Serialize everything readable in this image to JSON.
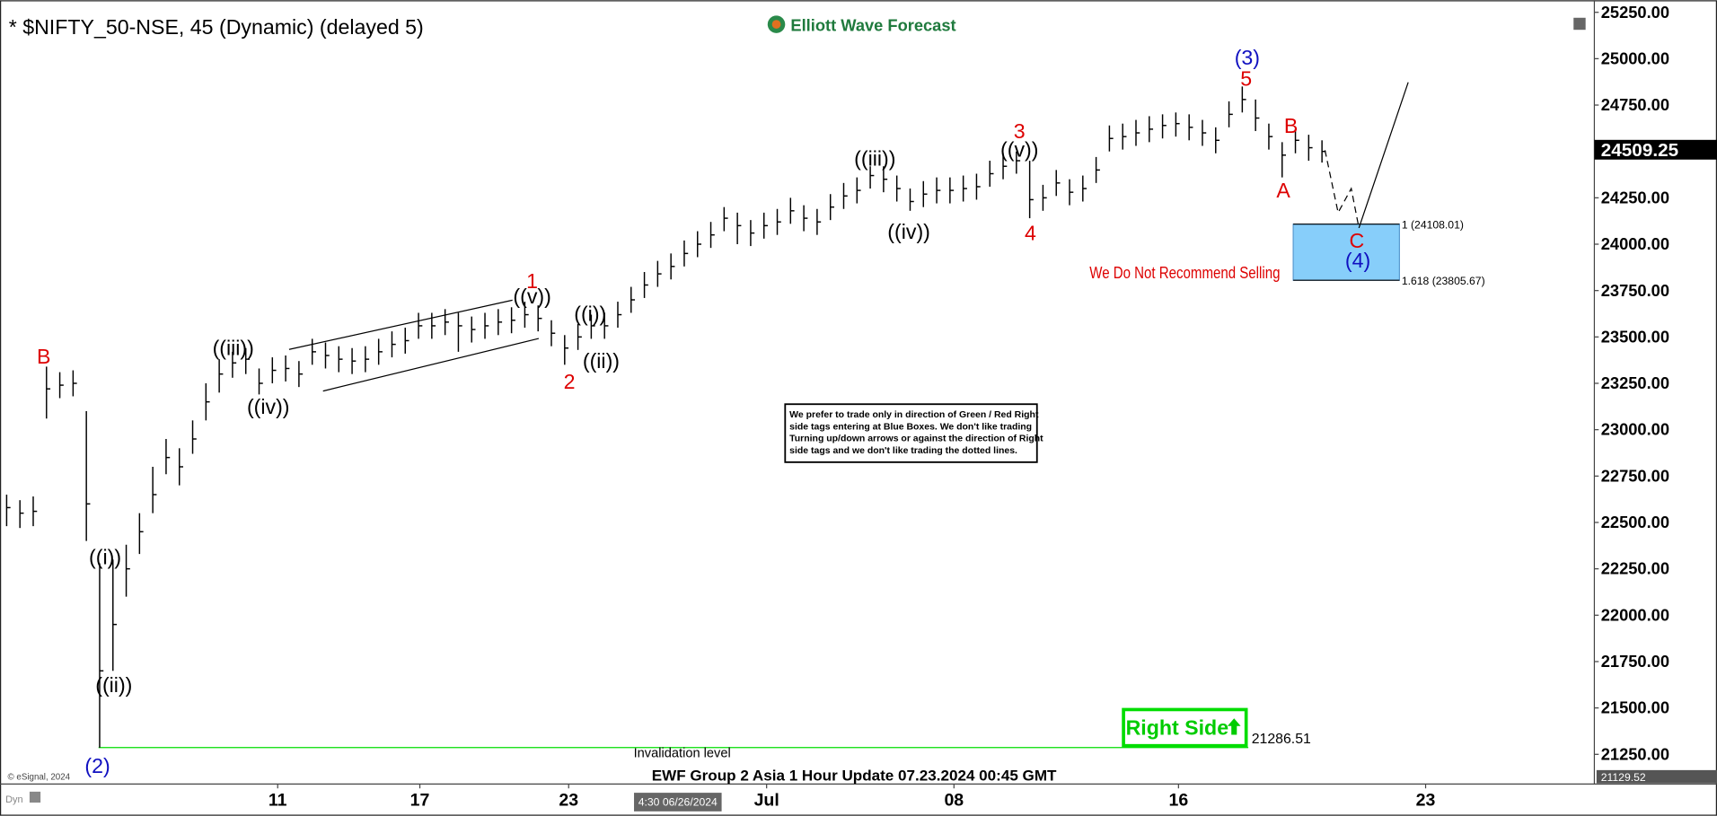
{
  "chart_data": {
    "type": "ohlc",
    "title": "* $NIFTY_50-NSE, 45 (Dynamic) (delayed 5)",
    "logo": "Elliott Wave Forecast",
    "footer": "EWF Group 2 Asia 1 Hour Update 07.23.2024 00:45 GMT",
    "copyright": "© eSignal, 2024",
    "cursor_time": "4:30 06/26/2024",
    "interval_label": "Dyn",
    "color": "#000000",
    "xlim": [
      0,
      120
    ],
    "ylim": [
      21090,
      25315
    ],
    "xticks": [
      {
        "value": 20.9,
        "label": "11"
      },
      {
        "value": 31.6,
        "label": "17"
      },
      {
        "value": 42.8,
        "label": "23"
      },
      {
        "value": 57.7,
        "label": "Jul"
      },
      {
        "value": 71.8,
        "label": "08"
      },
      {
        "value": 88.7,
        "label": "16"
      },
      {
        "value": 107.3,
        "label": "23"
      }
    ],
    "yticks": [
      {
        "value": 21250,
        "label": "21250.00"
      },
      {
        "value": 21500,
        "label": "21500.00"
      },
      {
        "value": 21750,
        "label": "21750.00"
      },
      {
        "value": 22000,
        "label": "22000.00"
      },
      {
        "value": 22250,
        "label": "22250.00"
      },
      {
        "value": 22500,
        "label": "22500.00"
      },
      {
        "value": 22750,
        "label": "22750.00"
      },
      {
        "value": 23000,
        "label": "23000.00"
      },
      {
        "value": 23250,
        "label": "23250.00"
      },
      {
        "value": 23500,
        "label": "23500.00"
      },
      {
        "value": 23750,
        "label": "23750.00"
      },
      {
        "value": 24000,
        "label": "24000.00"
      },
      {
        "value": 24250,
        "label": "24250.00"
      },
      {
        "value": 24500,
        "label": "24500.00"
      },
      {
        "value": 24750,
        "label": "24750.00"
      },
      {
        "value": 25000,
        "label": "25000.00"
      },
      {
        "value": 25250,
        "label": "25250.00"
      }
    ],
    "high": [
      22650,
      22620,
      22640,
      23340,
      23310,
      23320,
      23100,
      22280,
      22300,
      22380,
      22550,
      22800,
      22950,
      22900,
      23050,
      23250,
      23380,
      23420,
      23440,
      23330,
      23390,
      23400,
      23370,
      23490,
      23470,
      23450,
      23440,
      23450,
      23490,
      23530,
      23550,
      23630,
      23630,
      23650,
      23630,
      23610,
      23630,
      23650,
      23660,
      23690,
      23670,
      23590,
      23510,
      23570,
      23620,
      23630,
      23690,
      23770,
      23850,
      23910,
      23950,
      24020,
      24070,
      24120,
      24200,
      24170,
      24130,
      24170,
      24190,
      24250,
      24210,
      24190,
      24270,
      24330,
      24360,
      24420,
      24420,
      24370,
      24300,
      24340,
      24360,
      24360,
      24370,
      24380,
      24450,
      24490,
      24500,
      24450,
      24320,
      24400,
      24350,
      24370,
      24470,
      24640,
      24650,
      24670,
      24690,
      24700,
      24710,
      24700,
      24670,
      24630,
      24770,
      24850,
      24780,
      24650,
      24550,
      24620,
      24590,
      24560
    ],
    "low": [
      22480,
      22470,
      22480,
      23060,
      23170,
      23180,
      22400,
      21286,
      21700,
      22100,
      22330,
      22550,
      22760,
      22700,
      22870,
      23050,
      23200,
      23280,
      23300,
      23190,
      23250,
      23260,
      23230,
      23350,
      23330,
      23310,
      23300,
      23310,
      23350,
      23390,
      23410,
      23490,
      23490,
      23510,
      23420,
      23470,
      23490,
      23510,
      23520,
      23550,
      23530,
      23450,
      23350,
      23430,
      23490,
      23490,
      23550,
      23630,
      23710,
      23770,
      23810,
      23880,
      23930,
      23980,
      24070,
      24000,
      23990,
      24030,
      24050,
      24110,
      24070,
      24050,
      24130,
      24190,
      24220,
      24300,
      24280,
      24230,
      24180,
      24200,
      24220,
      24220,
      24230,
      24240,
      24310,
      24350,
      24380,
      24140,
      24180,
      24260,
      24210,
      24230,
      24330,
      24500,
      24510,
      24530,
      24550,
      24570,
      24580,
      24560,
      24530,
      24490,
      24630,
      24710,
      24610,
      24510,
      24360,
      24490,
      24450,
      24440
    ],
    "close": [
      22580,
      22550,
      22560,
      23220,
      23240,
      23250,
      22600,
      21700,
      21950,
      22250,
      22450,
      22650,
      22850,
      22800,
      22950,
      23150,
      23300,
      23360,
      23380,
      23250,
      23320,
      23330,
      23300,
      23420,
      23400,
      23380,
      23370,
      23380,
      23420,
      23460,
      23480,
      23560,
      23560,
      23580,
      23560,
      23540,
      23560,
      23580,
      23590,
      23620,
      23600,
      23520,
      23440,
      23500,
      23560,
      23560,
      23620,
      23700,
      23780,
      23840,
      23880,
      23950,
      24000,
      24050,
      24140,
      24100,
      24060,
      24100,
      24120,
      24180,
      24140,
      24120,
      24200,
      24260,
      24290,
      24370,
      24350,
      24300,
      24230,
      24270,
      24290,
      24290,
      24300,
      24310,
      24380,
      24420,
      24450,
      24240,
      24250,
      24330,
      24280,
      24300,
      24400,
      24570,
      24580,
      24600,
      24620,
      24640,
      24650,
      24630,
      24600,
      24560,
      24700,
      24780,
      24680,
      24580,
      24480,
      24560,
      24520,
      24500
    ],
    "last_price": {
      "value": 24509.25,
      "label": "24509.25"
    },
    "axis_low": {
      "value": 21129.52,
      "label": "21129.52"
    },
    "invalidation": {
      "value": 21286.51,
      "label": "21286.51",
      "text": "Invalidation level",
      "color": "#00dd00"
    },
    "fib_levels": [
      {
        "value": 24108.01,
        "label": "1 (24108.01)"
      },
      {
        "value": 23805.67,
        "label": "1.618 (23805.67)"
      }
    ],
    "box_color": "#87cefa",
    "warning": "We Do Not Recommend Selling",
    "right_side": "Right Side",
    "note": [
      "We prefer to trade only in direction of Green / Red Right",
      "side tags entering at Blue Boxes. We don't like trading",
      "Turning up/down arrows or against the direction of Right",
      "side tags and we don't like trading the dotted lines."
    ],
    "annotations": [
      {
        "text": "B",
        "color": "#dd0000"
      },
      {
        "text": "((i))",
        "color": "#000000"
      },
      {
        "text": "((ii))",
        "color": "#000000"
      },
      {
        "text": "(2)",
        "color": "#1010c0"
      },
      {
        "text": "((iii))",
        "color": "#000000"
      },
      {
        "text": "((iv))",
        "color": "#000000"
      },
      {
        "text": "1",
        "color": "#dd0000"
      },
      {
        "text": "((v))",
        "color": "#000000"
      },
      {
        "text": "2",
        "color": "#dd0000"
      },
      {
        "text": "((i))",
        "color": "#000000"
      },
      {
        "text": "((ii))",
        "color": "#000000"
      },
      {
        "text": "((iii))",
        "color": "#000000"
      },
      {
        "text": "((iv))",
        "color": "#000000"
      },
      {
        "text": "3",
        "color": "#dd0000"
      },
      {
        "text": "((v))",
        "color": "#000000"
      },
      {
        "text": "4",
        "color": "#dd0000"
      },
      {
        "text": "(3)",
        "color": "#1010c0"
      },
      {
        "text": "5",
        "color": "#dd0000"
      },
      {
        "text": "B",
        "color": "#dd0000"
      },
      {
        "text": "A",
        "color": "#dd0000"
      },
      {
        "text": "C",
        "color": "#dd0000"
      },
      {
        "text": "(4)",
        "color": "#1010c0"
      }
    ]
  }
}
